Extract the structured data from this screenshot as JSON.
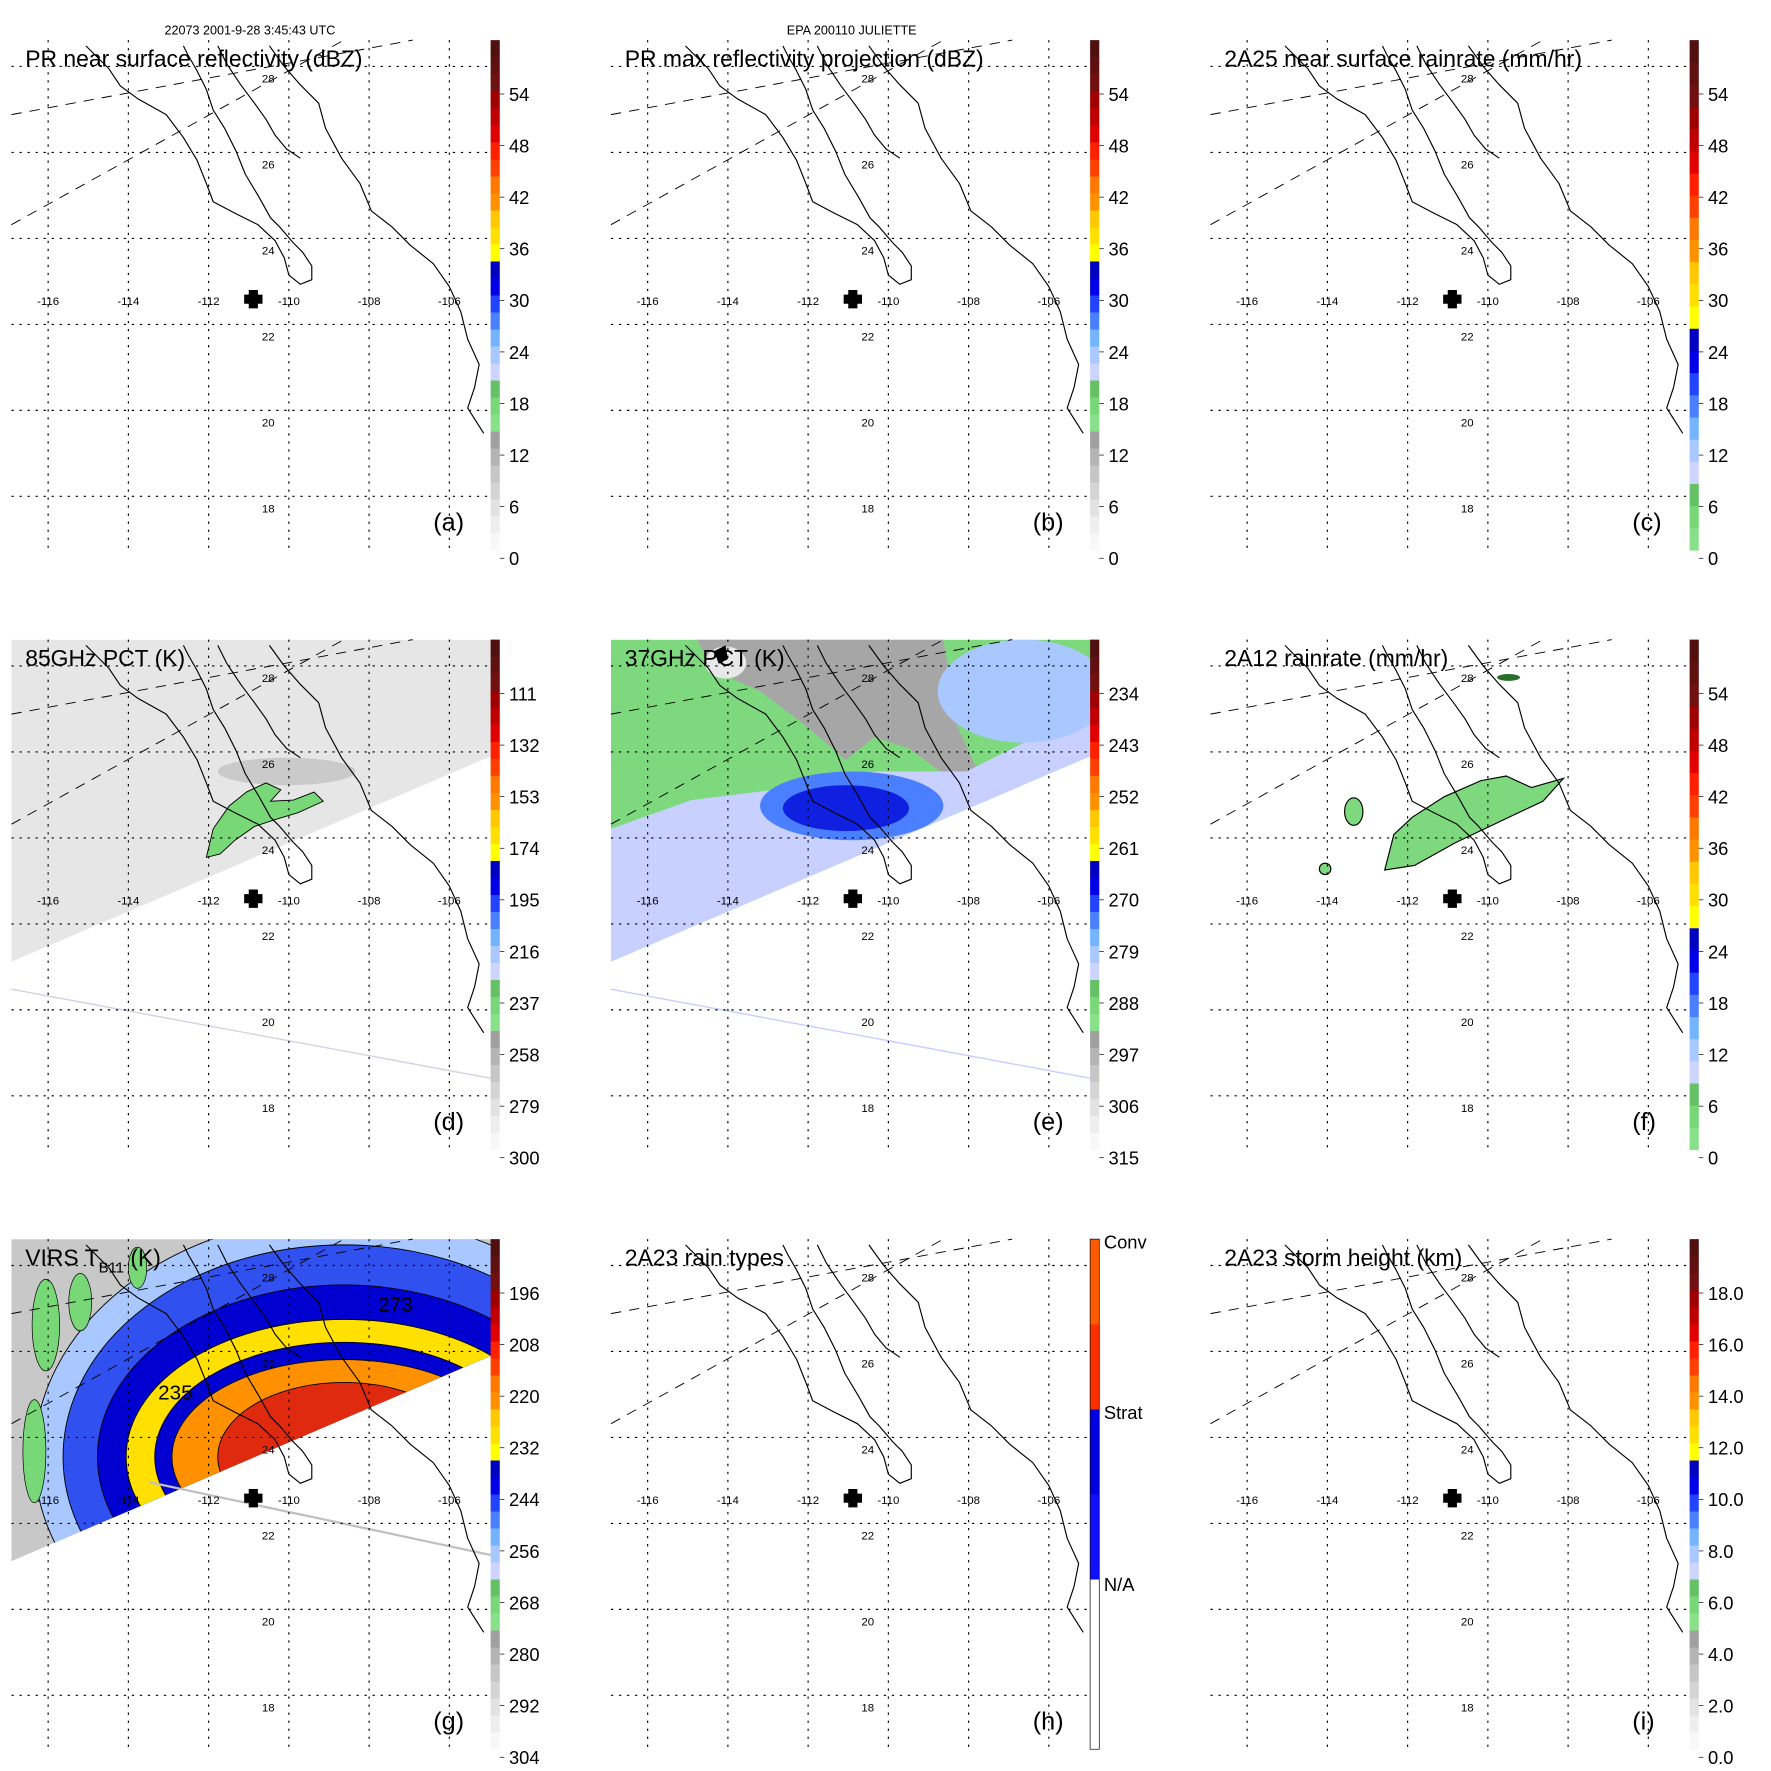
{
  "header": {
    "left": "22073 2001-9-28 3:45:43 UTC",
    "center": "EPA 200110 JULIETTE"
  },
  "map": {
    "lon_labels": [
      "-116",
      "-114",
      "-112",
      "-110",
      "-108",
      "-106"
    ],
    "lat_labels": [
      "28",
      "26",
      "24",
      "22",
      "20",
      "18"
    ],
    "center_marker_icon": "plus-icon"
  },
  "palettes": {
    "A": [
      "#f8f8f8",
      "#eeeeee",
      "#e2e2e2",
      "#d4d4d4",
      "#c6c6c6",
      "#b4b4b4",
      "#a0a0a0",
      "#88e088",
      "#78d878",
      "#66c066",
      "#ccd4ff",
      "#a8c8ff",
      "#74b4ff",
      "#4a80ff",
      "#2244ff",
      "#0000e8",
      "#0000c0",
      "#ffff00",
      "#ffe000",
      "#ffc800",
      "#ff9000",
      "#ff7800",
      "#ff4000",
      "#ff2000",
      "#e00000",
      "#c00000",
      "#a00000",
      "#701010",
      "#601010",
      "#501010"
    ],
    "C": [
      "#88e088",
      "#78d878",
      "#66c066",
      "#ccd4ff",
      "#a8c8ff",
      "#74b4ff",
      "#4a80ff",
      "#2244ff",
      "#0000e8",
      "#0000c0",
      "#ffff00",
      "#ffe000",
      "#ffc800",
      "#ff9000",
      "#ff7800",
      "#ff4000",
      "#ff2000",
      "#e00000",
      "#c00000",
      "#a00000",
      "#701010",
      "#601010",
      "#501010"
    ],
    "H": [
      "#ffffff",
      "#ffffff",
      "#1010ff",
      "#0000e0",
      "#ff3000",
      "#ff5a00"
    ]
  },
  "panels": [
    {
      "id": "a",
      "title": "PR near surface reflectivity (dBZ)",
      "letter": "(a)",
      "palette": "A",
      "ticks": [
        "54",
        "48",
        "42",
        "36",
        "30",
        "24",
        "18",
        "12",
        "6",
        "0"
      ],
      "field": "none"
    },
    {
      "id": "b",
      "title": "PR max reflectivity projection (dBZ)",
      "letter": "(b)",
      "palette": "A",
      "ticks": [
        "54",
        "48",
        "42",
        "36",
        "30",
        "24",
        "18",
        "12",
        "6",
        "0"
      ],
      "field": "none"
    },
    {
      "id": "c",
      "title": "2A25 near surface rainrate (mm/hr)",
      "letter": "(c)",
      "palette": "C",
      "ticks": [
        "54",
        "48",
        "42",
        "36",
        "30",
        "24",
        "18",
        "12",
        "6",
        "0"
      ],
      "field": "none"
    },
    {
      "id": "d",
      "title": "85GHz PCT (K)",
      "letter": "(d)",
      "palette": "A",
      "ticks": [
        "111",
        "132",
        "153",
        "174",
        "195",
        "216",
        "237",
        "258",
        "279",
        "300"
      ],
      "field": "pct85"
    },
    {
      "id": "e",
      "title": "37GHz PCT (K)",
      "letter": "(e)",
      "palette": "A",
      "ticks": [
        "234",
        "243",
        "252",
        "261",
        "270",
        "279",
        "288",
        "297",
        "306",
        "315"
      ],
      "field": "pct37"
    },
    {
      "id": "f",
      "title": "2A12 rainrate (mm/hr)",
      "letter": "(f)",
      "palette": "C",
      "ticks": [
        "54",
        "48",
        "42",
        "36",
        "30",
        "24",
        "18",
        "12",
        "6",
        "0"
      ],
      "field": "rain2a12"
    },
    {
      "id": "g",
      "title": "VIRS T",
      "title_sub": "B11",
      "title_suffix": " (K)",
      "letter": "(g)",
      "palette": "A",
      "ticks": [
        "196",
        "208",
        "220",
        "232",
        "244",
        "256",
        "268",
        "280",
        "292",
        "304"
      ],
      "field": "virs",
      "contour_labels": [
        "273",
        "235"
      ]
    },
    {
      "id": "h",
      "title": "2A23 rain types",
      "letter": "(h)",
      "palette": "H",
      "class_labels": [
        "Conv",
        "Strat",
        "N/A"
      ],
      "field": "none"
    },
    {
      "id": "i",
      "title": "2A23 storm height (km)",
      "letter": "(i)",
      "palette": "A",
      "ticks": [
        "18.0",
        "16.0",
        "14.0",
        "12.0",
        "10.0",
        "8.0",
        "6.0",
        "4.0",
        "2.0",
        "0.0"
      ],
      "field": "none"
    }
  ]
}
